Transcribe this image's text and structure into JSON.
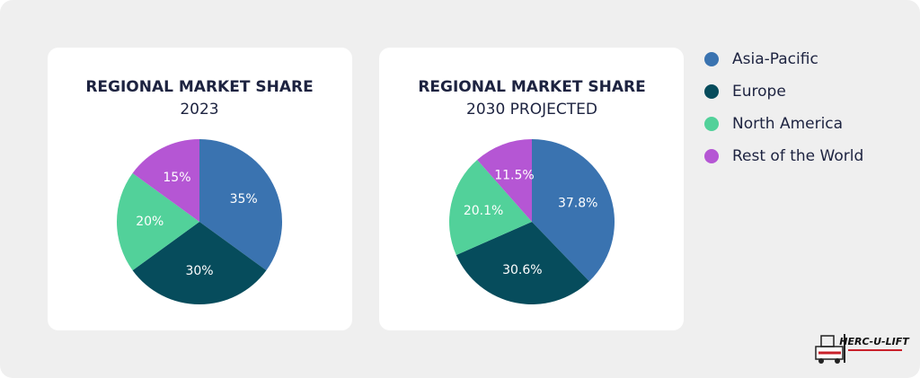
{
  "chart_data": [
    {
      "type": "pie",
      "title": "REGIONAL MARKET SHARE",
      "subtitle": "2023",
      "categories": [
        "Asia-Pacific",
        "Europe",
        "North America",
        "Rest of the World"
      ],
      "values": [
        35,
        30,
        20,
        15
      ],
      "value_labels": [
        "35%",
        "30%",
        "20%",
        "15%"
      ],
      "colors": [
        "#3a73b0",
        "#064c5c",
        "#52d19a",
        "#b556d4"
      ]
    },
    {
      "type": "pie",
      "title": "REGIONAL MARKET SHARE",
      "subtitle": "2030 PROJECTED",
      "categories": [
        "Asia-Pacific",
        "Europe",
        "North America",
        "Rest of the World"
      ],
      "values": [
        37.8,
        30.6,
        20.1,
        11.5
      ],
      "value_labels": [
        "37.8%",
        "30.6%",
        "20.1%",
        "11.5%"
      ],
      "colors": [
        "#3a73b0",
        "#064c5c",
        "#52d19a",
        "#b556d4"
      ]
    }
  ],
  "logo": {
    "text": "HERC-U-LIFT"
  }
}
